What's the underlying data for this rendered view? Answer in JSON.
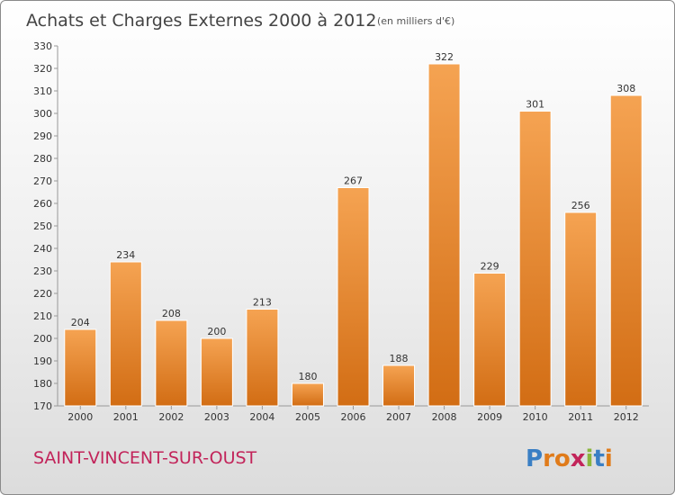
{
  "chart_data": {
    "type": "bar",
    "title": "Achats et Charges Externes 2000 à 2012",
    "subtitle": "(en milliers d'€)",
    "categories": [
      "2000",
      "2001",
      "2002",
      "2003",
      "2004",
      "2005",
      "2006",
      "2007",
      "2008",
      "2009",
      "2010",
      "2011",
      "2012"
    ],
    "values": [
      204,
      234,
      208,
      200,
      213,
      180,
      267,
      188,
      322,
      229,
      301,
      256,
      308
    ],
    "ylim": [
      170,
      330
    ],
    "yticks": [
      170,
      180,
      190,
      200,
      210,
      220,
      230,
      240,
      250,
      260,
      270,
      280,
      290,
      300,
      310,
      320,
      330
    ],
    "xlabel": "",
    "ylabel": "",
    "grid": false,
    "bar_color_top": "#f5a352",
    "bar_color_bottom": "#d26d14"
  },
  "footer": {
    "commune": "SAINT-VINCENT-SUR-OUST",
    "logo": "Proxiti",
    "logo_letter_colors": [
      "#3a7fc4",
      "#e07b1a",
      "#e07b1a",
      "#c2245a",
      "#8ab63c",
      "#3a7fc4",
      "#e07b1a"
    ]
  }
}
